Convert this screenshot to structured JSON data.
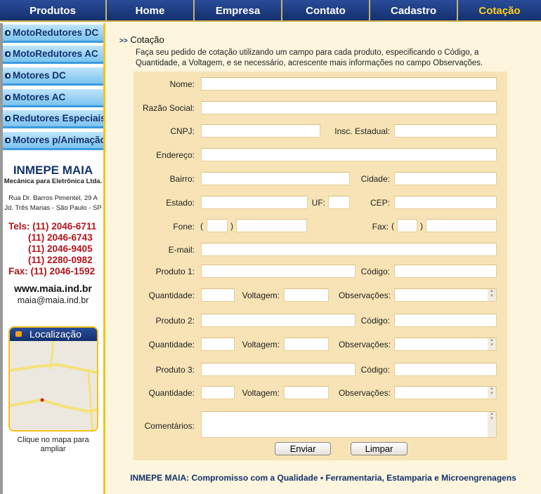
{
  "nav": [
    "Produtos",
    "Home",
    "Empresa",
    "Contato",
    "Cadastro",
    "Cotação"
  ],
  "sidebar": {
    "items": [
      "MotoRedutores DC",
      "MotoRedutores AC",
      "Motores DC",
      "Motores AC",
      "Redutores Especiais",
      "Motores p/Animação"
    ],
    "company": "INMEPE MAIA",
    "subtitle": "Mecânica para Eletrônica Ltda.",
    "address1": "Rua Dr. Barros Pimentel, 29 A",
    "address2": "Jd. Três Marias - São Paulo - SP",
    "phones": [
      "Tels: (11) 2046-6711",
      "(11) 2046-6743",
      "(11) 2046-9405",
      "(11) 2280-0982",
      "Fax: (11) 2046-1592"
    ],
    "website": "www.maia.ind.br",
    "email": "maia@maia.ind.br",
    "map_title": "Localização",
    "map_caption1": "Clique no mapa para",
    "map_caption2": "ampliar"
  },
  "main": {
    "arrow": ">>",
    "title": "Cotação",
    "intro1": "Faça seu pedido de cotação utilizando um campo para cada produto, especificando o Código, a",
    "intro2": "Quantidade, a Voltagem, e se necessário, acrescente mais informações no campo Observações.",
    "labels": {
      "nome": "Nome:",
      "razao": "Razão Social:",
      "cnpj": "CNPJ:",
      "insc": "Insc. Estadual:",
      "endereco": "Endereço:",
      "bairro": "Bairro:",
      "cidade": "Cidade:",
      "estado": "Estado:",
      "uf": "UF:",
      "cep": "CEP:",
      "fone": "Fone:",
      "fax": "Fax:",
      "email": "E-mail:",
      "produto1": "Produto 1:",
      "produto2": "Produto 2:",
      "produto3": "Produto 3:",
      "codigo": "Código:",
      "quantidade": "Quantidade:",
      "voltagem": "Voltagem:",
      "observacoes": "Observações:",
      "comentarios": "Comentários:",
      "paren_open": "(",
      "paren_close": ")"
    },
    "buttons": {
      "send": "Enviar",
      "clear": "Limpar"
    }
  },
  "footer": "INMEPE MAIA: Compromisso com a Qualidade • Ferramentaria, Estamparia e Microengrenagens",
  "colors": {
    "nav": "#1b3a7f",
    "active_nav": "#ffd21a",
    "form_bg": "#f7e3b5",
    "page_bg": "#fdf5dd",
    "phone_red": "#b3141b"
  }
}
